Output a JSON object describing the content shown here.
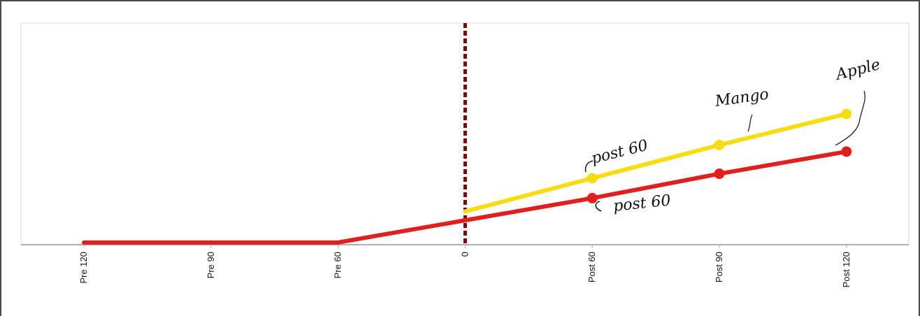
{
  "chart_data": {
    "type": "line",
    "categories": [
      "Pre 120",
      "Pre 90",
      "Pre 60",
      "0",
      "Post 60",
      "Post 90",
      "Post 120"
    ],
    "series": [
      {
        "name": "Mango",
        "color": "#f7dc12",
        "values": [
          null,
          null,
          null,
          15,
          30,
          45,
          59
        ]
      },
      {
        "name": "Apple",
        "color": "#e0201f",
        "values": [
          1,
          1,
          1,
          11,
          21,
          32,
          42
        ]
      }
    ],
    "ylim": [
      0,
      100
    ],
    "reference_line": {
      "category": "0",
      "color": "#7a0a0a"
    },
    "annotations": [
      "post 60",
      "post 60"
    ]
  }
}
